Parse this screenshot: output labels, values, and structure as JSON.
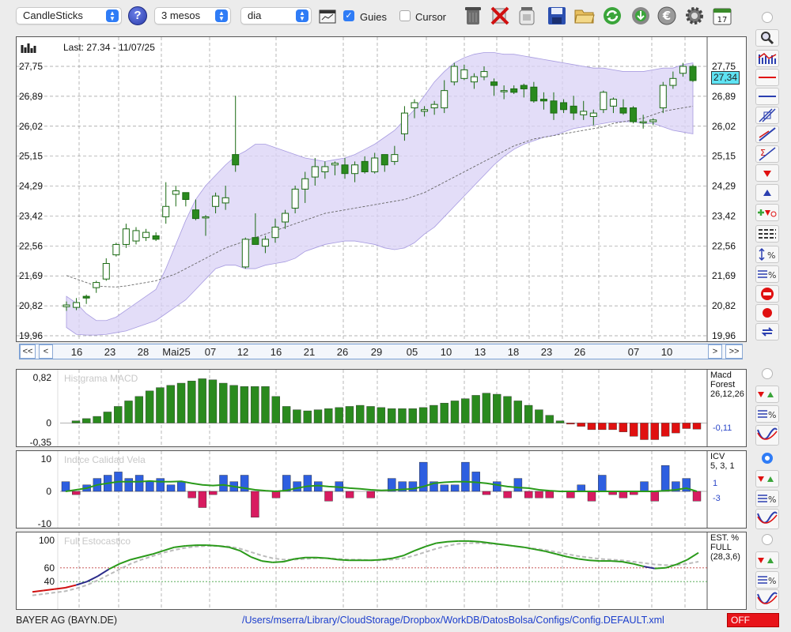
{
  "toolbar": {
    "chart_type": "CandleSticks",
    "period": "3 mesos",
    "interval": "dia",
    "guies_label": "Guies",
    "guies_checked": true,
    "cursor_label": "Cursor",
    "cursor_checked": false,
    "help_glyph": "?",
    "icons": [
      "calendar-grid-icon",
      "trash-icon",
      "delete-icon",
      "jar-icon",
      "save-icon",
      "folder-open-icon",
      "refresh-icon",
      "download-refresh-icon",
      "euro-icon",
      "gear-icon",
      "calendar-icon"
    ]
  },
  "main_chart": {
    "last_label": "Last: 27.34 - 11/07/25",
    "y_ticks": [
      "27,75",
      "26,89",
      "26,02",
      "25,15",
      "24,29",
      "23,42",
      "22,56",
      "21,69",
      "20,82",
      "19,96"
    ],
    "price_box": "27,34",
    "nav": {
      "first": "<<",
      "prev": "<",
      "next": ">",
      "last": ">>",
      "dates": [
        "16",
        "23",
        "28",
        "Mai25",
        "07",
        "12",
        "16",
        "21",
        "26",
        "29",
        "05",
        "10",
        "13",
        "18",
        "23",
        "26",
        "07",
        "10"
      ]
    }
  },
  "macd": {
    "title": "Histgrama MACD",
    "y_ticks": [
      "0,82",
      "0",
      "-0,35"
    ],
    "side_name": "Macd\nForest\n26,12,26",
    "value": "-0,11"
  },
  "icv": {
    "title": "Indice Calidad Vela",
    "y_ticks": [
      "10",
      "0",
      "-10"
    ],
    "side_name": "ICV\n5, 3, 1",
    "value_pos": "1",
    "value_neg": "-3"
  },
  "stoch": {
    "title": "Full Estocastico",
    "y_ticks": [
      "100",
      "60",
      "40"
    ],
    "side_name": "EST. %\nFULL\n(28,3,6)"
  },
  "statusbar": {
    "ticker": "BAYER AG (BAYN.DE)",
    "config_path": "/Users/mserra/Library/CloudStorage/Dropbox/WorkDB/DatosBolsa/Configs/Config.DEFAULT.xml",
    "off_label": "OFF"
  },
  "colors": {
    "bull": "#ffffff",
    "bear": "#2a8a1e",
    "candle_stroke": "#1a6a12",
    "band": "#d9d2f5",
    "band_edge": "#a79be0",
    "macd_pos": "#2a8a1e",
    "macd_neg": "#e01010",
    "icv_pos": "#2e5fe0",
    "icv_neg": "#d81b60",
    "icv_line": "#2a9a1a",
    "stoch_k": "#2a9a1a",
    "stoch_d": "#bbbbbb"
  },
  "chart_data": [
    {
      "type": "candlestick",
      "title": "Last: 27.34 - 11/07/25",
      "ylim": [
        19.96,
        27.75
      ],
      "candles": [
        {
          "o": 20.8,
          "h": 20.95,
          "l": 20.68,
          "c": 20.85
        },
        {
          "o": 20.78,
          "h": 21.05,
          "l": 20.7,
          "c": 20.92
        },
        {
          "o": 21.1,
          "h": 21.15,
          "l": 20.88,
          "c": 21.05
        },
        {
          "o": 21.35,
          "h": 21.55,
          "l": 21.2,
          "c": 21.5
        },
        {
          "o": 21.6,
          "h": 22.2,
          "l": 21.55,
          "c": 22.05
        },
        {
          "o": 22.3,
          "h": 22.65,
          "l": 22.25,
          "c": 22.6
        },
        {
          "o": 22.6,
          "h": 23.2,
          "l": 22.5,
          "c": 23.05
        },
        {
          "o": 22.7,
          "h": 23.1,
          "l": 22.6,
          "c": 23.0
        },
        {
          "o": 22.8,
          "h": 23.05,
          "l": 22.7,
          "c": 22.95
        },
        {
          "o": 22.85,
          "h": 22.95,
          "l": 22.7,
          "c": 22.75
        },
        {
          "o": 23.4,
          "h": 24.4,
          "l": 23.2,
          "c": 23.7
        },
        {
          "o": 24.05,
          "h": 24.3,
          "l": 23.7,
          "c": 24.15
        },
        {
          "o": 24.1,
          "h": 24.1,
          "l": 23.7,
          "c": 23.9
        },
        {
          "o": 23.6,
          "h": 23.9,
          "l": 23.3,
          "c": 23.35
        },
        {
          "o": 23.4,
          "h": 23.45,
          "l": 22.85,
          "c": 23.4
        },
        {
          "o": 23.7,
          "h": 24.1,
          "l": 23.5,
          "c": 24.0
        },
        {
          "o": 23.8,
          "h": 24.3,
          "l": 23.6,
          "c": 23.95
        },
        {
          "o": 25.2,
          "h": 26.9,
          "l": 24.7,
          "c": 24.9
        },
        {
          "o": 21.95,
          "h": 22.8,
          "l": 21.9,
          "c": 22.75
        },
        {
          "o": 22.8,
          "h": 23.5,
          "l": 22.6,
          "c": 22.6
        },
        {
          "o": 22.55,
          "h": 22.85,
          "l": 22.35,
          "c": 22.75
        },
        {
          "o": 22.8,
          "h": 23.35,
          "l": 22.65,
          "c": 23.1
        },
        {
          "o": 23.25,
          "h": 23.6,
          "l": 23.05,
          "c": 23.5
        },
        {
          "o": 23.65,
          "h": 24.3,
          "l": 23.5,
          "c": 24.2
        },
        {
          "o": 24.2,
          "h": 24.7,
          "l": 23.8,
          "c": 24.5
        },
        {
          "o": 24.55,
          "h": 25.1,
          "l": 24.3,
          "c": 24.85
        },
        {
          "o": 24.7,
          "h": 25.0,
          "l": 24.5,
          "c": 24.85
        },
        {
          "o": 24.9,
          "h": 25.0,
          "l": 24.6,
          "c": 24.95
        },
        {
          "o": 24.9,
          "h": 25.1,
          "l": 24.5,
          "c": 24.65
        },
        {
          "o": 24.65,
          "h": 25.0,
          "l": 24.4,
          "c": 24.9
        },
        {
          "o": 25.0,
          "h": 25.15,
          "l": 24.65,
          "c": 24.7
        },
        {
          "o": 24.7,
          "h": 25.25,
          "l": 24.65,
          "c": 25.1
        },
        {
          "o": 25.2,
          "h": 25.2,
          "l": 24.7,
          "c": 24.9
        },
        {
          "o": 25.0,
          "h": 25.45,
          "l": 24.9,
          "c": 25.2
        },
        {
          "o": 25.8,
          "h": 26.6,
          "l": 25.6,
          "c": 26.4
        },
        {
          "o": 26.55,
          "h": 26.8,
          "l": 26.25,
          "c": 26.7
        },
        {
          "o": 26.45,
          "h": 26.6,
          "l": 26.3,
          "c": 26.5
        },
        {
          "o": 26.55,
          "h": 26.75,
          "l": 26.35,
          "c": 26.65
        },
        {
          "o": 26.55,
          "h": 27.35,
          "l": 26.4,
          "c": 27.05
        },
        {
          "o": 27.3,
          "h": 27.85,
          "l": 27.2,
          "c": 27.75
        },
        {
          "o": 27.4,
          "h": 27.8,
          "l": 27.35,
          "c": 27.65
        },
        {
          "o": 27.3,
          "h": 27.55,
          "l": 27.1,
          "c": 27.45
        },
        {
          "o": 27.45,
          "h": 27.75,
          "l": 27.35,
          "c": 27.6
        },
        {
          "o": 27.3,
          "h": 27.4,
          "l": 26.9,
          "c": 27.2
        },
        {
          "o": 27.05,
          "h": 27.2,
          "l": 26.8,
          "c": 27.05
        },
        {
          "o": 27.1,
          "h": 27.2,
          "l": 26.95,
          "c": 27.0
        },
        {
          "o": 27.2,
          "h": 27.25,
          "l": 26.85,
          "c": 27.1
        },
        {
          "o": 27.15,
          "h": 27.3,
          "l": 26.7,
          "c": 26.75
        },
        {
          "o": 26.8,
          "h": 27.0,
          "l": 26.5,
          "c": 26.75
        },
        {
          "o": 26.75,
          "h": 27.0,
          "l": 26.2,
          "c": 26.4
        },
        {
          "o": 26.7,
          "h": 26.8,
          "l": 26.4,
          "c": 26.5
        },
        {
          "o": 26.6,
          "h": 26.9,
          "l": 26.2,
          "c": 26.4
        },
        {
          "o": 26.35,
          "h": 26.75,
          "l": 26.2,
          "c": 26.45
        },
        {
          "o": 26.3,
          "h": 26.5,
          "l": 26.05,
          "c": 26.4
        },
        {
          "o": 26.5,
          "h": 27.05,
          "l": 26.4,
          "c": 27.0
        },
        {
          "o": 26.6,
          "h": 26.85,
          "l": 26.4,
          "c": 26.8
        },
        {
          "o": 26.55,
          "h": 26.8,
          "l": 26.35,
          "c": 26.4
        },
        {
          "o": 26.55,
          "h": 26.6,
          "l": 26.1,
          "c": 26.15
        },
        {
          "o": 26.15,
          "h": 26.35,
          "l": 25.95,
          "c": 26.15
        },
        {
          "o": 26.15,
          "h": 26.25,
          "l": 26.05,
          "c": 26.2
        },
        {
          "o": 26.55,
          "h": 27.3,
          "l": 26.4,
          "c": 27.2
        },
        {
          "o": 27.2,
          "h": 27.6,
          "l": 27.1,
          "c": 27.4
        },
        {
          "o": 27.55,
          "h": 27.85,
          "l": 27.45,
          "c": 27.75
        },
        {
          "o": 27.75,
          "h": 27.8,
          "l": 27.3,
          "c": 27.34
        }
      ],
      "bollinger_upper": [
        21.1,
        20.9,
        20.6,
        20.4,
        20.4,
        20.5,
        20.7,
        20.9,
        21.1,
        21.3,
        21.9,
        22.6,
        23.3,
        23.9,
        24.3,
        24.6,
        24.9,
        25.15,
        25.3,
        25.5,
        25.5,
        25.4,
        25.3,
        25.2,
        25.1,
        25.05,
        25.0,
        25.05,
        25.1,
        25.2,
        25.35,
        25.5,
        25.7,
        25.9,
        26.2,
        26.5,
        26.9,
        27.3,
        27.6,
        27.85,
        28.0,
        28.1,
        28.15,
        28.15,
        28.1,
        28.1,
        28.05,
        28.0,
        27.95,
        27.9,
        27.85,
        27.8,
        27.75,
        27.7,
        27.7,
        27.65,
        27.6,
        27.6,
        27.6,
        27.65,
        27.7,
        27.7,
        27.8,
        27.85
      ],
      "bollinger_lower": [
        20.2,
        20.0,
        19.98,
        19.98,
        20.0,
        20.05,
        20.1,
        20.2,
        20.3,
        20.4,
        20.6,
        20.8,
        21.0,
        21.3,
        21.6,
        21.9,
        22.0,
        22.0,
        21.9,
        21.9,
        22.0,
        22.05,
        22.1,
        22.2,
        22.4,
        22.5,
        22.6,
        22.65,
        22.7,
        22.7,
        22.65,
        22.6,
        22.5,
        22.45,
        22.5,
        22.65,
        22.9,
        23.1,
        23.4,
        23.7,
        24.0,
        24.3,
        24.6,
        24.9,
        25.15,
        25.35,
        25.5,
        25.6,
        25.7,
        25.75,
        25.85,
        25.95,
        26.0,
        26.05,
        26.1,
        26.15,
        26.15,
        26.15,
        26.1,
        26.1,
        26.0,
        25.9,
        25.85,
        25.8
      ],
      "moving_average": [
        21.7,
        21.6,
        21.5,
        21.4,
        21.38,
        21.37,
        21.4,
        21.45,
        21.5,
        21.55,
        21.65,
        21.75,
        21.9,
        22.05,
        22.2,
        22.35,
        22.5,
        22.6,
        22.7,
        22.8,
        22.9,
        23.0,
        23.1,
        23.2,
        23.3,
        23.4,
        23.5,
        23.55,
        23.6,
        23.65,
        23.7,
        23.75,
        23.8,
        23.85,
        23.9,
        24.0,
        24.1,
        24.25,
        24.4,
        24.55,
        24.7,
        24.85,
        25.0,
        25.15,
        25.3,
        25.45,
        25.55,
        25.65,
        25.7,
        25.75,
        25.8,
        25.85,
        25.9,
        25.95,
        26.0,
        26.1,
        26.15,
        26.2,
        26.25,
        26.35,
        26.45,
        26.5,
        26.55,
        26.6
      ]
    },
    {
      "type": "bar",
      "title": "Histgrama MACD",
      "ylim": [
        -0.35,
        0.82
      ],
      "values": [
        0.04,
        0.08,
        0.12,
        0.2,
        0.3,
        0.4,
        0.48,
        0.58,
        0.64,
        0.68,
        0.72,
        0.76,
        0.8,
        0.78,
        0.72,
        0.68,
        0.66,
        0.66,
        0.66,
        0.48,
        0.3,
        0.24,
        0.22,
        0.24,
        0.26,
        0.28,
        0.3,
        0.32,
        0.3,
        0.28,
        0.26,
        0.26,
        0.26,
        0.28,
        0.32,
        0.36,
        0.4,
        0.44,
        0.5,
        0.54,
        0.52,
        0.48,
        0.4,
        0.32,
        0.24,
        0.14,
        0.04,
        -0.02,
        -0.06,
        -0.12,
        -0.12,
        -0.12,
        -0.16,
        -0.24,
        -0.3,
        -0.3,
        -0.24,
        -0.18,
        -0.1,
        -0.11
      ]
    },
    {
      "type": "bar",
      "title": "Indice Calidad Vela",
      "ylim": [
        -10,
        10
      ],
      "values": [
        3,
        -1,
        2,
        4,
        5,
        6,
        4,
        5,
        3,
        4,
        2,
        3,
        -2,
        -5,
        -1,
        5,
        3,
        5,
        -8,
        0,
        -2,
        5,
        3,
        5,
        3,
        -3,
        3,
        -2,
        0,
        -2,
        0,
        4,
        3,
        3,
        9,
        3,
        2,
        2,
        9,
        6,
        -1,
        3,
        -2,
        4,
        -2,
        -2,
        -2,
        0,
        -2,
        2,
        -3,
        5,
        -1,
        -2,
        -1,
        3,
        -3,
        8,
        3,
        4,
        -3
      ],
      "line": [
        0.0,
        0.5,
        1.0,
        2.0,
        2.5,
        3.0,
        3.0,
        3.0,
        3.2,
        3.0,
        3.0,
        3.1,
        2.5,
        2.0,
        1.8,
        2.0,
        1.5,
        1.0,
        0.5,
        0.2,
        0.0,
        0.3,
        1.0,
        1.6,
        1.8,
        1.5,
        1.3,
        1.0,
        0.8,
        0.5,
        0.3,
        0.4,
        0.6,
        0.8,
        1.5,
        2.5,
        2.8,
        3.0,
        3.0,
        2.8,
        2.5,
        2.0,
        1.5,
        1.2,
        1.0,
        0.5,
        0.2,
        0.0,
        0.0,
        0.0,
        0.0,
        0.0,
        0.0,
        0.0,
        0.0,
        0.0,
        0.0,
        0.2,
        0.5,
        1.0,
        0.0
      ]
    },
    {
      "type": "line",
      "title": "Full Estocastico",
      "ylim": [
        0,
        100
      ],
      "series": [
        {
          "values": [
            25,
            27,
            29,
            31,
            35,
            40,
            48,
            58,
            66,
            72,
            76,
            80,
            85,
            90,
            92,
            93,
            93,
            92,
            90,
            85,
            76,
            70,
            68,
            69,
            73,
            75,
            75,
            74,
            72,
            71,
            71,
            71,
            72,
            74,
            78,
            85,
            91,
            96,
            98,
            99,
            99,
            98,
            96,
            94,
            92,
            90,
            87,
            84,
            80,
            76,
            73,
            71,
            70,
            70,
            69,
            66,
            62,
            59,
            60,
            65,
            72,
            82
          ]
        },
        {
          "values": [
            20,
            22,
            24,
            26,
            30,
            35,
            42,
            50,
            58,
            66,
            72,
            77,
            82,
            86,
            89,
            91,
            92,
            92,
            91,
            88,
            83,
            78,
            74,
            72,
            72,
            73,
            74,
            74,
            73,
            72,
            72,
            71,
            71,
            72,
            74,
            78,
            83,
            88,
            92,
            95,
            96,
            96,
            95,
            94,
            92,
            90,
            88,
            86,
            83,
            80,
            77,
            75,
            73,
            72,
            71,
            69,
            67,
            65,
            64,
            64,
            66,
            69
          ]
        }
      ]
    }
  ]
}
